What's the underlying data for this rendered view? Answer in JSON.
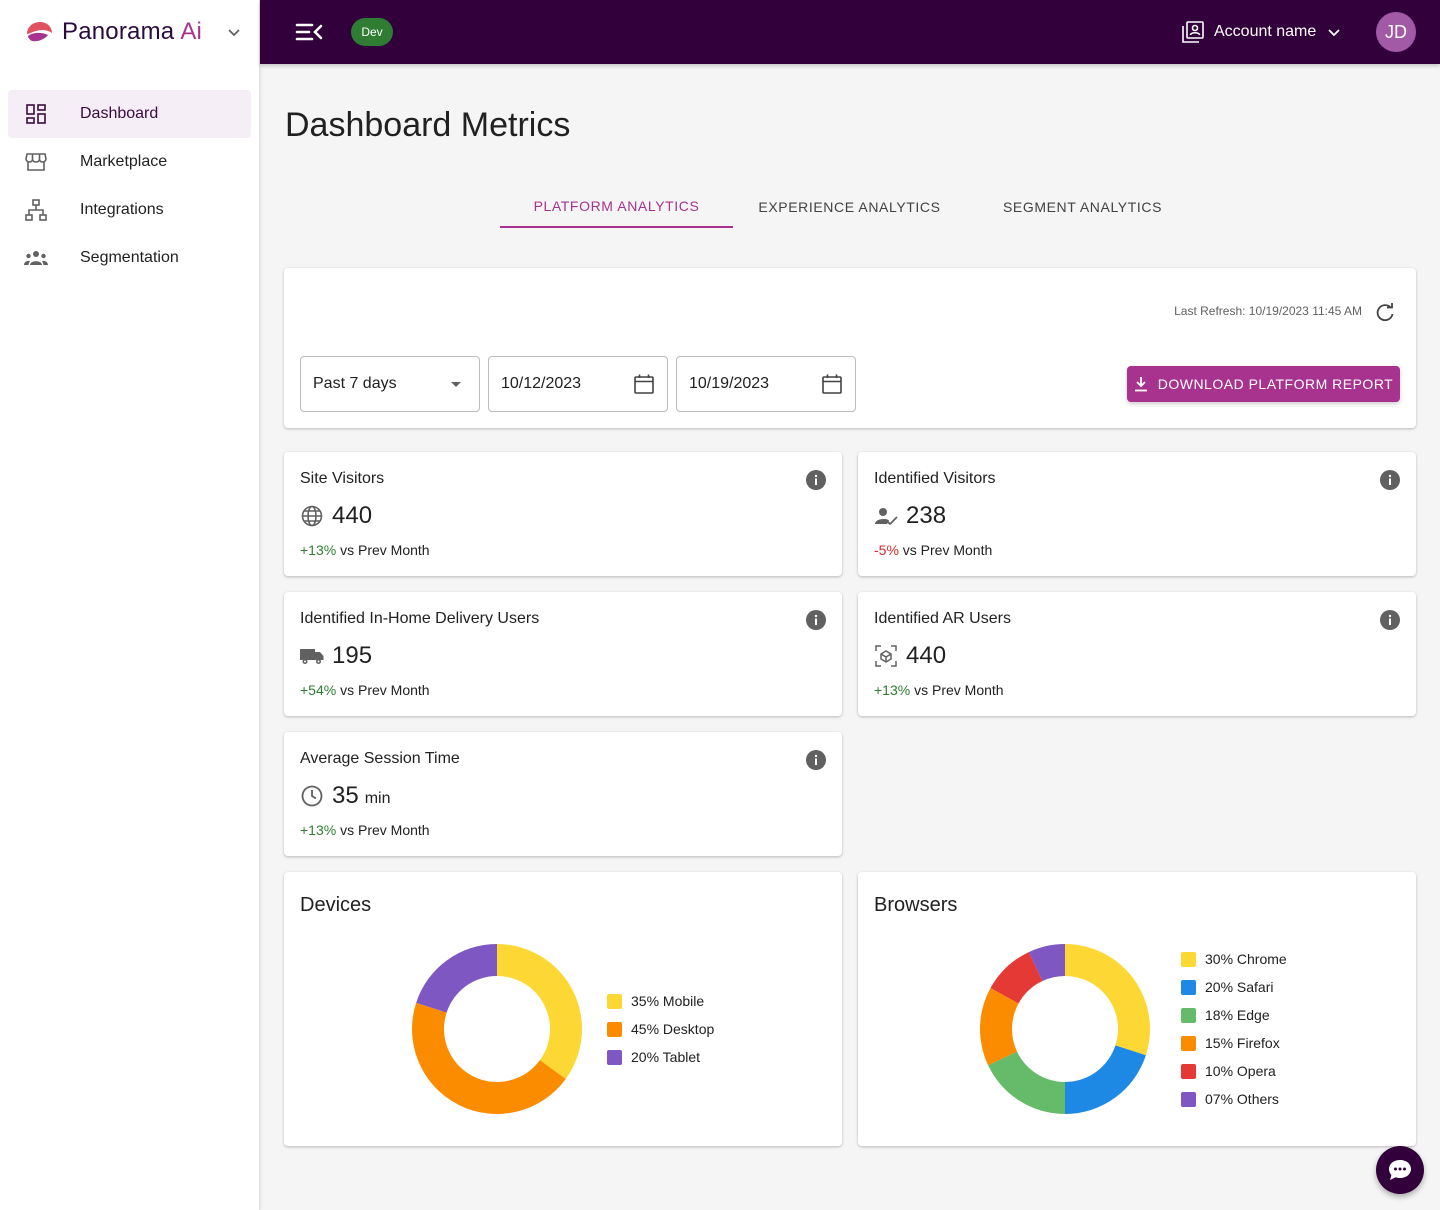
{
  "brand": {
    "name": "Panorama",
    "suffix": "Ai"
  },
  "sidebar": {
    "items": [
      {
        "label": "Dashboard",
        "icon": "dashboard-icon",
        "active": true
      },
      {
        "label": "Marketplace",
        "icon": "storefront-icon",
        "active": false
      },
      {
        "label": "Integrations",
        "icon": "hierarchy-icon",
        "active": false
      },
      {
        "label": "Segmentation",
        "icon": "groups-icon",
        "active": false
      }
    ]
  },
  "topbar": {
    "environment": "Dev",
    "account_name": "Account name",
    "avatar_initials": "JD"
  },
  "page": {
    "title": "Dashboard Metrics"
  },
  "tabs": [
    {
      "label": "PLATFORM ANALYTICS",
      "active": true
    },
    {
      "label": "EXPERIENCE ANALYTICS",
      "active": false
    },
    {
      "label": "SEGMENT ANALYTICS",
      "active": false
    }
  ],
  "filters": {
    "last_refresh": "Last Refresh: 10/19/2023 11:45 AM",
    "range": "Past 7 days",
    "start_date": "10/12/2023",
    "end_date": "10/19/2023",
    "download_label": "DOWNLOAD PLATFORM REPORT"
  },
  "metrics": [
    {
      "title": "Site Visitors",
      "icon": "globe-icon",
      "value": "440",
      "unit": "",
      "delta": "+13%",
      "trend": "up",
      "delta_suffix": "vs Prev Month"
    },
    {
      "title": "Identified Visitors",
      "icon": "person-check-icon",
      "value": "238",
      "unit": "",
      "delta": "-5%",
      "trend": "down",
      "delta_suffix": "vs Prev Month"
    },
    {
      "title": "Identified In-Home Delivery Users",
      "icon": "truck-icon",
      "value": "195",
      "unit": "",
      "delta": "+54%",
      "trend": "up",
      "delta_suffix": "vs Prev Month"
    },
    {
      "title": "Identified AR Users",
      "icon": "ar-cube-icon",
      "value": "440",
      "unit": "",
      "delta": "+13%",
      "trend": "up",
      "delta_suffix": "vs Prev Month"
    },
    {
      "title": "Average Session Time",
      "icon": "clock-icon",
      "value": "35",
      "unit": "min",
      "delta": "+13%",
      "trend": "up",
      "delta_suffix": "vs Prev Month"
    }
  ],
  "colors": {
    "brand": "#a7338f",
    "topbar": "#32003a",
    "positive": "#2e7d32",
    "negative": "#d32f2f"
  },
  "chart_data": [
    {
      "type": "pie",
      "title": "Devices",
      "donut": true,
      "legend_position": "right",
      "series": [
        {
          "name": "Mobile",
          "label": "35% Mobile",
          "value": 35,
          "color": "#fdd835"
        },
        {
          "name": "Desktop",
          "label": "45% Desktop",
          "value": 45,
          "color": "#fb8c00"
        },
        {
          "name": "Tablet",
          "label": "20% Tablet",
          "value": 20,
          "color": "#7e57c2"
        }
      ]
    },
    {
      "type": "pie",
      "title": "Browsers",
      "donut": true,
      "legend_position": "right",
      "series": [
        {
          "name": "Chrome",
          "label": "30% Chrome",
          "value": 30,
          "color": "#fdd835"
        },
        {
          "name": "Safari",
          "label": "20% Safari",
          "value": 20,
          "color": "#1e88e5"
        },
        {
          "name": "Edge",
          "label": "18% Edge",
          "value": 18,
          "color": "#66bb6a"
        },
        {
          "name": "Firefox",
          "label": "15% Firefox",
          "value": 15,
          "color": "#fb8c00"
        },
        {
          "name": "Opera",
          "label": "10% Opera",
          "value": 10,
          "color": "#e53935"
        },
        {
          "name": "Others",
          "label": "07% Others",
          "value": 7,
          "color": "#7e57c2"
        }
      ]
    }
  ]
}
